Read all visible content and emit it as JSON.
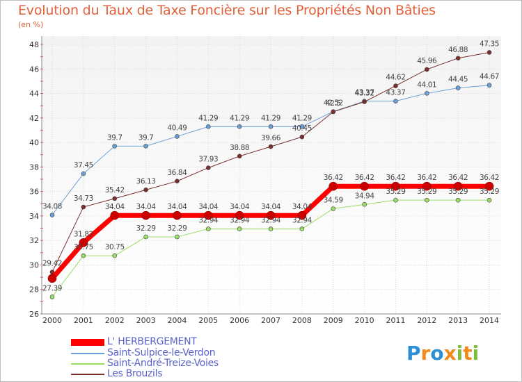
{
  "title": "Evolution du Taux de Taxe Foncière sur les Propriétés Non Bâties",
  "unit_label": "(en %)",
  "logo": {
    "letters": [
      {
        "char": "P",
        "color": "#2d8fd6"
      },
      {
        "char": "r",
        "color": "#f08a1c"
      },
      {
        "char": "o",
        "color": "#2d8fd6"
      },
      {
        "char": "x",
        "color": "#f08a1c"
      },
      {
        "char": "i",
        "color": "#7bbf3a"
      },
      {
        "char": "t",
        "color": "#f08a1c"
      },
      {
        "char": "i",
        "color": "#7bbf3a"
      }
    ]
  },
  "chart_data": {
    "type": "line",
    "title": "Evolution du Taux de Taxe Foncière sur les Propriétés Non Bâties",
    "ylabel": "(en %)",
    "xlabel": "",
    "ylim": [
      26,
      48
    ],
    "yticks": [
      26,
      28,
      30,
      32,
      34,
      36,
      38,
      40,
      42,
      44,
      46,
      48
    ],
    "x": [
      "2000",
      "2001",
      "2002",
      "2003",
      "2004",
      "2005",
      "2006",
      "2007",
      "2008",
      "2009",
      "2010",
      "2011",
      "2012",
      "2013",
      "2014"
    ],
    "grid": true,
    "legend_position": "bottom-left",
    "series": [
      {
        "name": "L' HERBERGEMENT",
        "color": "#ff0000",
        "width": 7,
        "values": [
          28.9,
          31.82,
          34.04,
          34.04,
          34.04,
          34.04,
          34.04,
          34.04,
          34.04,
          36.42,
          36.42,
          36.42,
          36.42,
          36.42,
          36.42
        ],
        "labels": [
          "",
          "31.82",
          "34.04",
          "34.04",
          "34.04",
          "34.04",
          "34.04",
          "34.04",
          "34.04",
          "36.42",
          "36.42",
          "36.42",
          "36.42",
          "36.42",
          "36.42"
        ]
      },
      {
        "name": "Saint-Sulpice-le-Verdon",
        "color": "#6b9fd4",
        "width": 1,
        "values": [
          34.08,
          37.45,
          39.7,
          39.7,
          40.49,
          41.29,
          41.29,
          41.29,
          41.29,
          42.52,
          43.37,
          43.37,
          44.01,
          44.45,
          44.67
        ],
        "labels": [
          "34.08",
          "37.45",
          "39.7",
          "39.7",
          "40.49",
          "41.29",
          "41.29",
          "41.29",
          "41.29",
          "42.52",
          "43.37",
          "43.37",
          "44.01",
          "44.45",
          "44.67"
        ]
      },
      {
        "name": "Saint-André-Treize-Voies",
        "color": "#99dd66",
        "width": 1,
        "values": [
          27.39,
          30.75,
          30.75,
          32.29,
          32.29,
          32.94,
          32.94,
          32.94,
          32.94,
          34.59,
          34.94,
          35.29,
          35.29,
          35.29,
          35.29
        ],
        "labels": [
          "27.39",
          "30.75",
          "30.75",
          "32.29",
          "32.29",
          "32.94",
          "32.94",
          "32.94",
          "32.94",
          "34.59",
          "34.94",
          "35.29",
          "35.29",
          "35.29",
          "35.29"
        ]
      },
      {
        "name": "Les Brouzils",
        "color": "#7a2e2e",
        "width": 1,
        "values": [
          29.42,
          34.73,
          35.42,
          36.13,
          36.84,
          37.93,
          38.88,
          39.66,
          40.45,
          42.5,
          43.32,
          44.62,
          45.96,
          46.88,
          47.35
        ],
        "labels": [
          "29.42",
          "34.73",
          "35.42",
          "36.13",
          "36.84",
          "37.93",
          "38.88",
          "39.66",
          "40.45",
          "42.5",
          "43.32",
          "44.62",
          "45.96",
          "46.88",
          "47.35"
        ]
      }
    ]
  }
}
